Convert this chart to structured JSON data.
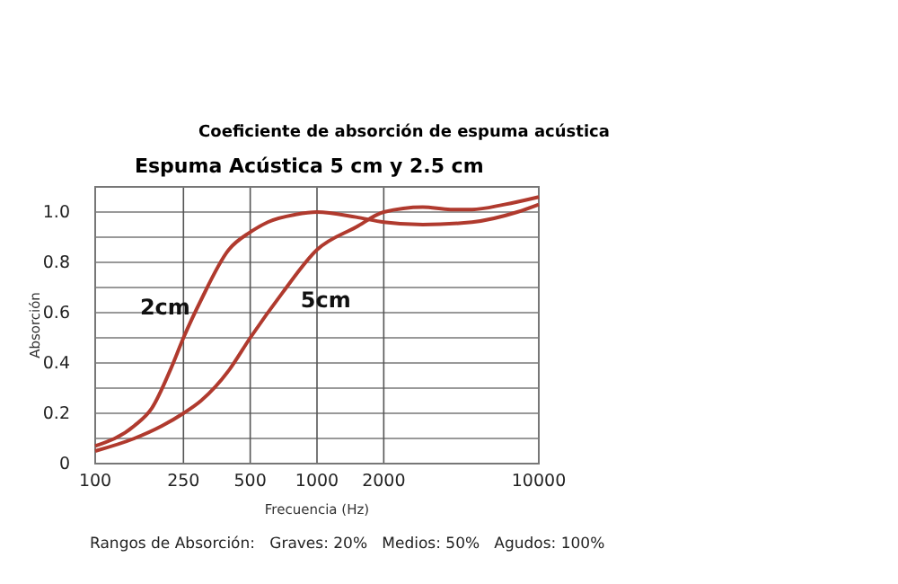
{
  "chart_data": {
    "type": "line",
    "title": "Coeficiente de absorción de espuma acústica",
    "subtitle": "Espuma Acústica 5 cm y 2.5 cm",
    "xlabel": "Frecuencia (Hz)",
    "ylabel": "Absorción",
    "annotations": [
      "Rangos de Absorción:   Graves: 20%   Medios: 50%   Agudos: 100%"
    ],
    "log": "x",
    "grid": true,
    "marker": "none",
    "line_style": "solid",
    "xlim": [
      100,
      10000
    ],
    "xticks": [
      100,
      250,
      500,
      1000,
      2000,
      10000
    ],
    "ylim": [
      0,
      1.1
    ],
    "yticks": [
      0,
      {
        "value": 0.1,
        "label": null
      },
      0.2,
      {
        "value": 0.3,
        "label": null
      },
      0.4,
      {
        "value": 0.5,
        "label": null
      },
      0.6,
      {
        "value": 0.7,
        "label": null
      },
      0.8,
      {
        "value": 0.9,
        "label": null
      },
      {
        "value": 1,
        "label": "1.0"
      }
    ],
    "series": [
      {
        "name": "2cm",
        "color": "#b03a2e",
        "x": [
          100,
          150,
          180,
          220,
          250,
          300,
          400,
          500,
          600,
          800,
          1000,
          1500,
          2000,
          3000,
          5000,
          8000,
          10000
        ],
        "values": [
          0.07,
          0.15,
          0.22,
          0.38,
          0.5,
          0.65,
          0.85,
          0.92,
          0.96,
          0.99,
          1.0,
          0.98,
          0.96,
          0.95,
          0.96,
          1.0,
          1.03
        ]
      },
      {
        "name": "5cm",
        "color": "#b03a2e",
        "x": [
          100,
          150,
          200,
          250,
          300,
          400,
          500,
          700,
          1000,
          1500,
          2000,
          3000,
          4000,
          5000,
          7000,
          10000
        ],
        "values": [
          0.05,
          0.1,
          0.15,
          0.2,
          0.25,
          0.37,
          0.5,
          0.68,
          0.85,
          0.94,
          1.0,
          1.02,
          1.01,
          1.01,
          1.03,
          1.06
        ]
      }
    ]
  }
}
